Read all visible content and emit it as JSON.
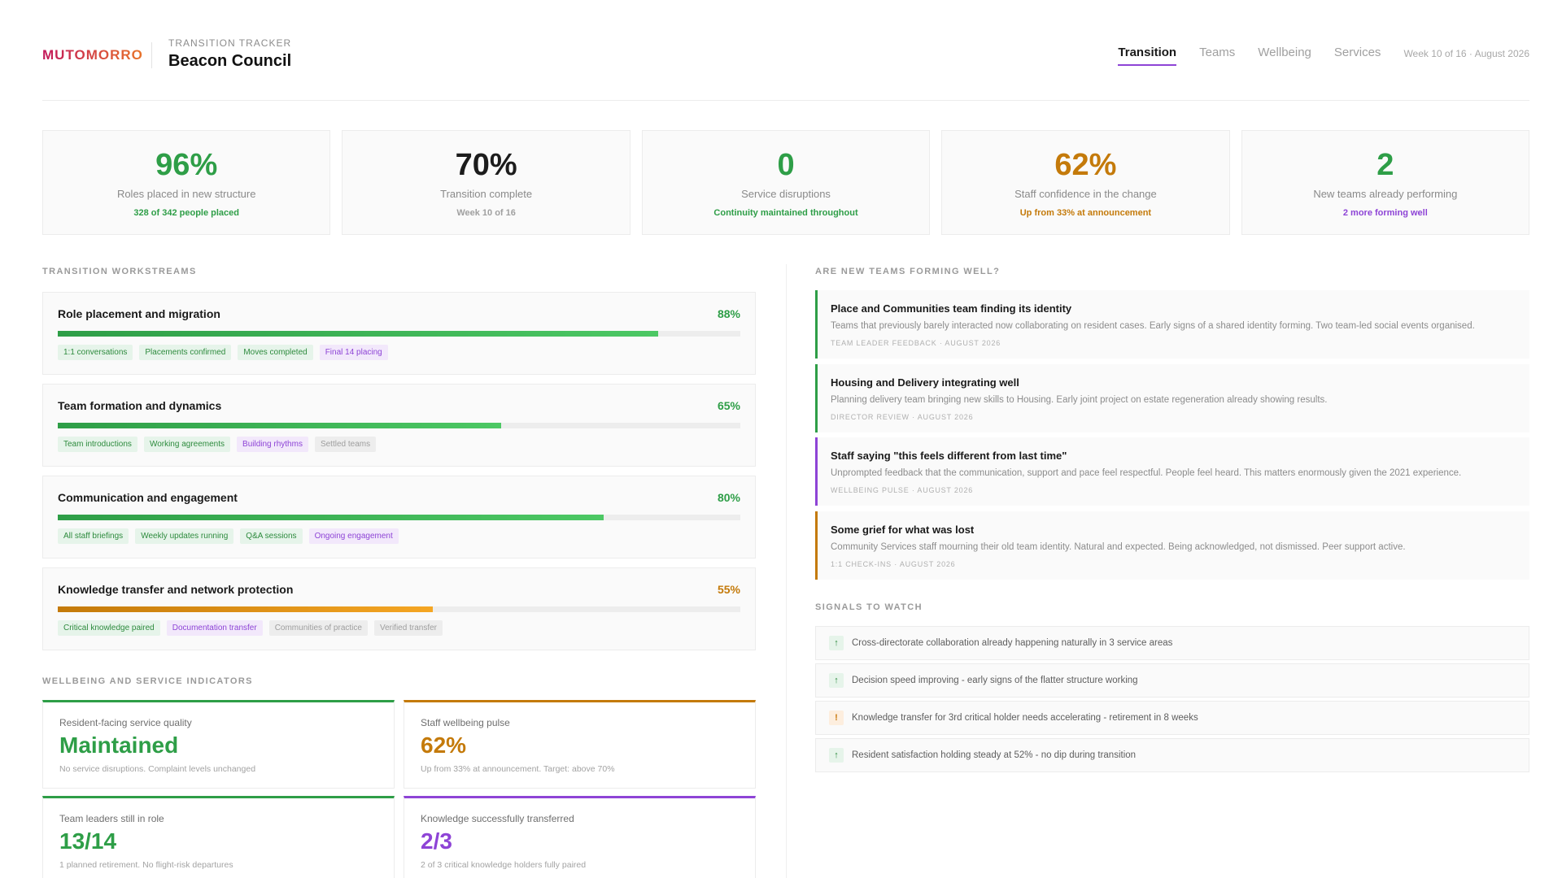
{
  "header": {
    "logo": "MUTOMORRO",
    "subtitle": "TRANSITION TRACKER",
    "title": "Beacon Council",
    "nav": [
      "Transition",
      "Teams",
      "Wellbeing",
      "Services"
    ],
    "week": "Week 10 of 16 · August 2026"
  },
  "kpis": [
    {
      "value": "96%",
      "label": "Roles placed in new structure",
      "sub": "328 of 342 people placed",
      "color": "#2e9e47",
      "sub_color": "#2e9e47"
    },
    {
      "value": "70%",
      "label": "Transition complete",
      "sub": "Week 10 of 16",
      "color": "#1c1c1c",
      "sub_color": "#a0a0a0"
    },
    {
      "value": "0",
      "label": "Service disruptions",
      "sub": "Continuity maintained throughout",
      "color": "#2e9e47",
      "sub_color": "#2e9e47"
    },
    {
      "value": "62%",
      "label": "Staff confidence in the change",
      "sub": "Up from 33% at announcement",
      "color": "#c47a0a",
      "sub_color": "#c47a0a"
    },
    {
      "value": "2",
      "label": "New teams already performing",
      "sub": "2 more forming well",
      "color": "#2e9e47",
      "sub_color": "#8e44d6"
    }
  ],
  "workstreams": {
    "label": "TRANSITION WORKSTREAMS",
    "items": [
      {
        "title": "Role placement and migration",
        "pct": "88%",
        "progress": 0.88,
        "color": "#2e9e47",
        "tags": [
          {
            "text": "1:1 conversations",
            "state": "done"
          },
          {
            "text": "Placements confirmed",
            "state": "done"
          },
          {
            "text": "Moves completed",
            "state": "done"
          },
          {
            "text": "Final 14 placing",
            "state": "progress"
          }
        ]
      },
      {
        "title": "Team formation and dynamics",
        "pct": "65%",
        "progress": 0.65,
        "color": "#2e9e47",
        "tags": [
          {
            "text": "Team introductions",
            "state": "done"
          },
          {
            "text": "Working agreements",
            "state": "done"
          },
          {
            "text": "Building rhythms",
            "state": "progress"
          },
          {
            "text": "Settled teams",
            "state": "pending"
          }
        ]
      },
      {
        "title": "Communication and engagement",
        "pct": "80%",
        "progress": 0.8,
        "color": "#2e9e47",
        "tags": [
          {
            "text": "All staff briefings",
            "state": "done"
          },
          {
            "text": "Weekly updates running",
            "state": "done"
          },
          {
            "text": "Q&A sessions",
            "state": "done"
          },
          {
            "text": "Ongoing engagement",
            "state": "progress"
          }
        ]
      },
      {
        "title": "Knowledge transfer and network protection",
        "pct": "55%",
        "progress": 0.55,
        "color": "#c47a0a",
        "tags": [
          {
            "text": "Critical knowledge paired",
            "state": "done"
          },
          {
            "text": "Documentation transfer",
            "state": "progress"
          },
          {
            "text": "Communities of practice",
            "state": "pending"
          },
          {
            "text": "Verified transfer",
            "state": "pending"
          }
        ]
      }
    ]
  },
  "wellbeing": {
    "label": "WELLBEING AND SERVICE INDICATORS",
    "cards": [
      {
        "label": "Resident-facing service quality",
        "value": "Maintained",
        "note": "No service disruptions. Complaint levels unchanged",
        "color": "#2e9e47"
      },
      {
        "label": "Staff wellbeing pulse",
        "value": "62%",
        "note": "Up from 33% at announcement. Target: above 70%",
        "color": "#c47a0a"
      },
      {
        "label": "Team leaders still in role",
        "value": "13/14",
        "note": "1 planned retirement. No flight-risk departures",
        "color": "#2e9e47"
      },
      {
        "label": "Knowledge successfully transferred",
        "value": "2/3",
        "note": "2 of 3 critical knowledge holders fully paired",
        "color": "#8e44d6"
      }
    ]
  },
  "teams_forming": {
    "label": "ARE NEW TEAMS FORMING WELL?",
    "stories": [
      {
        "title": "Place and Communities team finding its identity",
        "body": "Teams that previously barely interacted now collaborating on resident cases. Early signs of a shared identity forming. Two team-led social events organised.",
        "source": "TEAM LEADER FEEDBACK · AUGUST 2026",
        "color": "#2e9e47"
      },
      {
        "title": "Housing and Delivery integrating well",
        "body": "Planning delivery team bringing new skills to Housing. Early joint project on estate regeneration already showing results.",
        "source": "DIRECTOR REVIEW · AUGUST 2026",
        "color": "#2e9e47"
      },
      {
        "title": "Staff saying \"this feels different from last time\"",
        "body": "Unprompted feedback that the communication, support and pace feel respectful. People feel heard. This matters enormously given the 2021 experience.",
        "source": "WELLBEING PULSE · AUGUST 2026",
        "color": "#8e44d6"
      },
      {
        "title": "Some grief for what was lost",
        "body": "Community Services staff mourning their old team identity. Natural and expected. Being acknowledged, not dismissed. Peer support active.",
        "source": "1:1 CHECK-INS · AUGUST 2026",
        "color": "#c47a0a"
      }
    ]
  },
  "signals": {
    "label": "SIGNALS TO WATCH",
    "items": [
      {
        "icon": "↑",
        "type": "up",
        "icon_name": "arrow-up-icon",
        "text": "Cross-directorate collaboration already happening naturally in 3 service areas"
      },
      {
        "icon": "↑",
        "type": "up",
        "icon_name": "arrow-up-icon",
        "text": "Decision speed improving - early signs of the flatter structure working"
      },
      {
        "icon": "!",
        "type": "warn",
        "icon_name": "warning-icon",
        "text": "Knowledge transfer for 3rd critical holder needs accelerating - retirement in 8 weeks"
      },
      {
        "icon": "↑",
        "type": "up",
        "icon_name": "arrow-up-icon",
        "text": "Resident satisfaction holding steady at 52% - no dip during transition"
      }
    ]
  }
}
